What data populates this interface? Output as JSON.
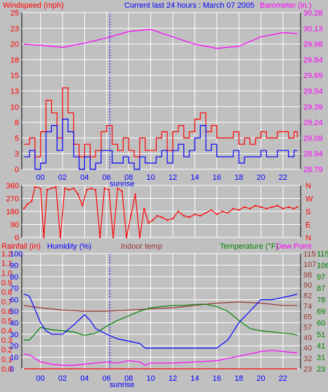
{
  "header": {
    "left_label": "Windspeed (mph)",
    "center_label": "Current last 24 hours : March 07 2005",
    "right_label": "Barometer (in.)"
  },
  "colors": {
    "background": "#c0c0c0",
    "gridline": "#ffffff",
    "panel_border": "#000000",
    "wind_avg": "#0000ff",
    "wind_gust": "#ff0000",
    "barometer": "#ff00ff",
    "direction": "#ff0000",
    "humidity": "#0000ff",
    "indoor_temp": "#993333",
    "temperature": "#008000",
    "dew_point": "#ff00ff",
    "rainfall": "#ff0000",
    "sunrise": "#0000ff"
  },
  "chart_data": [
    {
      "type": "line",
      "panel": "wind",
      "x_ticks": [
        "00",
        "02",
        "04",
        "06",
        "08",
        "10",
        "12",
        "14",
        "16",
        "18",
        "20",
        "22"
      ],
      "marker_label": "sunrise",
      "y_left_ticks": [
        "0",
        "3",
        "5",
        "8",
        "10",
        "13",
        "15",
        "18",
        "20",
        "23",
        "25"
      ],
      "y_right_ticks": [
        "28.79",
        "28.94",
        "29.09",
        "29.24",
        "29.39",
        "29.54",
        "29.69",
        "29.84",
        "29.98",
        "30.13",
        "30.28"
      ],
      "ylim_left": [
        0,
        25
      ],
      "ylim_right": [
        28.79,
        30.28
      ],
      "series": [
        {
          "name": "Windspeed",
          "hours": [
            -1.5,
            -1,
            -0.5,
            0,
            0.5,
            1,
            1.5,
            2,
            2.5,
            3,
            3.5,
            4,
            4.5,
            5,
            5.5,
            6,
            6.5,
            7,
            7.5,
            8,
            8.5,
            9,
            9.5,
            10,
            10.5,
            11,
            11.5,
            12,
            12.5,
            13,
            13.5,
            14,
            14.5,
            15,
            15.5,
            16,
            16.5,
            17,
            17.5,
            18,
            18.5,
            19,
            19.5,
            20,
            20.5,
            21,
            21.5,
            22,
            22.5,
            23,
            23.3
          ],
          "values": [
            2,
            3,
            0,
            1,
            6,
            7,
            3,
            8,
            6,
            2,
            0,
            2,
            0,
            1,
            3,
            3,
            1,
            1,
            2,
            1,
            0,
            2,
            1,
            1,
            2,
            3,
            1,
            3,
            4,
            2,
            3,
            5,
            7,
            3,
            4,
            2,
            2,
            2,
            3,
            1,
            2,
            2,
            2,
            3,
            2,
            2,
            3,
            3,
            2,
            3,
            3
          ]
        },
        {
          "name": "Gust",
          "hours": [
            -1.5,
            -1,
            -0.5,
            0,
            0.5,
            1,
            1.5,
            2,
            2.5,
            3,
            3.5,
            4,
            4.5,
            5,
            5.5,
            6,
            6.5,
            7,
            7.5,
            8,
            8.5,
            9,
            9.5,
            10,
            10.5,
            11,
            11.5,
            12,
            12.5,
            13,
            13.5,
            14,
            14.5,
            15,
            15.5,
            16,
            16.5,
            17,
            17.5,
            18,
            18.5,
            19,
            19.5,
            20,
            20.5,
            21,
            21.5,
            22,
            22.5,
            23,
            23.3
          ],
          "values": [
            4,
            5,
            2,
            6,
            11,
            9,
            5,
            13,
            9,
            4,
            2,
            4,
            2,
            3,
            6,
            7,
            4,
            3,
            5,
            3,
            2,
            5,
            3,
            3,
            5,
            6,
            3,
            6,
            7,
            5,
            6,
            8,
            9,
            6,
            7,
            5,
            5,
            5,
            6,
            4,
            5,
            4,
            5,
            6,
            5,
            5,
            6,
            6,
            5,
            6,
            5
          ]
        },
        {
          "name": "Barometer",
          "hours": [
            -1.5,
            0,
            2,
            4,
            6,
            8,
            10,
            12,
            14,
            16,
            18,
            20,
            22,
            23.3
          ],
          "values": [
            29.98,
            29.97,
            29.95,
            29.99,
            30.04,
            30.1,
            30.12,
            30.05,
            29.98,
            29.94,
            29.96,
            30.05,
            30.09,
            30.08
          ]
        }
      ]
    },
    {
      "type": "line",
      "panel": "direction",
      "y_left_ticks": [
        "0",
        "90",
        "180",
        "270",
        "360"
      ],
      "y_right_ticks": [
        "N",
        "E",
        "S",
        "W",
        "N"
      ],
      "ylim": [
        0,
        360
      ],
      "series": [
        {
          "name": "Wind direction",
          "hours": [
            -1.5,
            -1.2,
            -0.8,
            -0.5,
            0,
            0.3,
            0.6,
            1,
            1.4,
            1.8,
            2.2,
            2.6,
            3,
            3.4,
            3.8,
            4.2,
            4.6,
            5,
            5.4,
            5.8,
            6.2,
            6.6,
            7,
            7.4,
            7.8,
            8.2,
            8.6,
            9,
            9.4,
            9.8,
            10.2,
            10.6,
            11,
            11.5,
            12,
            12.5,
            13,
            13.5,
            14,
            14.5,
            15,
            15.5,
            16,
            16.5,
            17,
            17.5,
            18,
            18.5,
            19,
            19.5,
            20,
            20.5,
            21,
            21.5,
            22,
            22.5,
            23,
            23.3
          ],
          "values": [
            200,
            230,
            250,
            350,
            340,
            0,
            330,
            340,
            350,
            0,
            340,
            330,
            340,
            300,
            220,
            330,
            340,
            330,
            0,
            340,
            330,
            0,
            340,
            320,
            0,
            150,
            300,
            0,
            200,
            100,
            120,
            150,
            140,
            120,
            130,
            180,
            150,
            140,
            160,
            150,
            170,
            190,
            160,
            180,
            170,
            200,
            190,
            210,
            200,
            220,
            210,
            200,
            210,
            220,
            200,
            210,
            200,
            210
          ]
        }
      ]
    },
    {
      "type": "line",
      "panel": "temperature",
      "header_labels": [
        "Rainfall (in)",
        "Humidity (%)",
        "Indoor temp",
        "Temperature (°F)",
        "Dew Point"
      ],
      "y_rain_ticks": [
        "0.0",
        "0.1",
        "0.2",
        "0.3",
        "0.4",
        "0.5",
        "0.6",
        "0.7",
        "0.8",
        "0.9",
        "1.0",
        "1.1",
        "1.2"
      ],
      "y_humidity_ticks": [
        "0",
        "10",
        "20",
        "30",
        "40",
        "50",
        "60",
        "70",
        "80",
        "90",
        "100"
      ],
      "y_indoor_ticks": [
        "23",
        "32",
        "40",
        "49",
        "57",
        "65",
        "74",
        "82",
        "90",
        "98",
        "107",
        "115"
      ],
      "y_temp_ticks": [
        "23",
        "31",
        "41",
        "51",
        "60",
        "69",
        "78",
        "87",
        "97",
        "106",
        "115"
      ],
      "ylim_humidity": [
        0,
        100
      ],
      "series": [
        {
          "name": "Humidity",
          "hours": [
            -1.5,
            -1,
            0,
            0.5,
            1,
            2,
            3,
            4,
            4.5,
            5,
            6,
            7,
            8,
            9,
            9.5,
            10,
            12,
            14,
            15,
            16,
            17,
            18,
            19,
            20,
            21,
            22,
            23,
            23.3
          ],
          "values": [
            65,
            63,
            40,
            33,
            30,
            30,
            38,
            47,
            42,
            35,
            30,
            26,
            24,
            22,
            18,
            18,
            18,
            18,
            18,
            18,
            25,
            40,
            50,
            60,
            60,
            62,
            64,
            65
          ]
        },
        {
          "name": "Indoor temp",
          "hours": [
            -1.5,
            0,
            2,
            4,
            6,
            8,
            10,
            12,
            14,
            16,
            18,
            20,
            22,
            23.3
          ],
          "values": [
            55,
            53,
            51,
            50,
            50,
            51,
            52,
            53,
            55,
            57,
            58,
            57,
            55,
            55
          ]
        },
        {
          "name": "Temperature",
          "hours": [
            -1.5,
            -1,
            0,
            1,
            2,
            3,
            4,
            5,
            6,
            7,
            8,
            9,
            10,
            11,
            12,
            13,
            14,
            15,
            16,
            17,
            18,
            19,
            20,
            21,
            22,
            23,
            23.3
          ],
          "values": [
            25,
            25,
            36,
            34,
            33,
            32,
            29,
            31,
            37,
            42,
            46,
            50,
            53,
            54,
            55,
            55,
            56,
            56,
            54,
            50,
            42,
            35,
            33,
            32,
            31,
            30,
            29
          ]
        },
        {
          "name": "Dew Point",
          "hours": [
            -1.5,
            -1,
            0,
            1,
            2,
            3,
            4,
            5,
            6,
            7,
            8,
            9,
            9.5,
            10,
            12,
            14,
            16,
            17,
            18,
            19,
            20,
            21,
            22,
            23,
            23.3
          ],
          "values": [
            13,
            12,
            6,
            4,
            3,
            3,
            4,
            5,
            6,
            5,
            7,
            6,
            3,
            5,
            5,
            6,
            7,
            9,
            11,
            13,
            15,
            16,
            15,
            14,
            14
          ]
        },
        {
          "name": "Rainfall",
          "hours": [
            -1.5,
            23.3
          ],
          "values": [
            0,
            0
          ]
        }
      ]
    }
  ]
}
